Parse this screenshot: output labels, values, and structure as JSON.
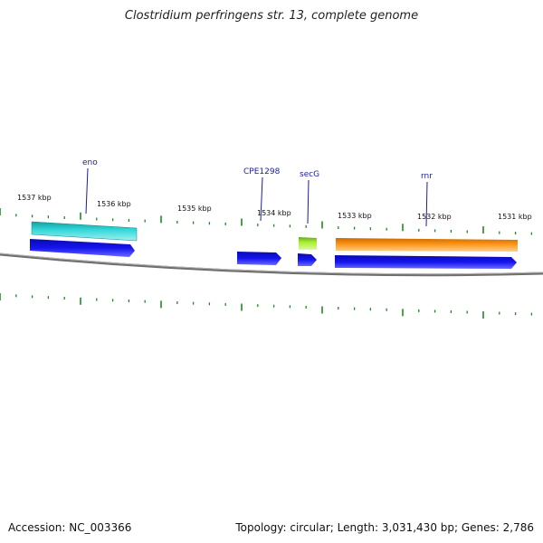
{
  "title": "Clostridium perfringens str. 13, complete genome",
  "footer": {
    "accession": "Accession: NC_003366",
    "stats": "Topology: circular; Length: 3,031,430 bp; Genes: 2,786"
  },
  "scale_labels": [
    "1537 kbp",
    "1536 kbp",
    "1535 kbp",
    "1534 kbp",
    "1533 kbp",
    "1532 kbp",
    "1531 kbp"
  ],
  "gene_labels": [
    "eno",
    "CPE1298",
    "secG",
    "rnr"
  ],
  "colors": {
    "backbone": "#7a7a7a",
    "ticks": "#1f8a1f",
    "cds": "#1010e6",
    "eno_feature": "#20c4c8",
    "secG_feature": "#9ee62a",
    "rnr_feature": "#f28a0a",
    "label": "#1a1aa8"
  }
}
